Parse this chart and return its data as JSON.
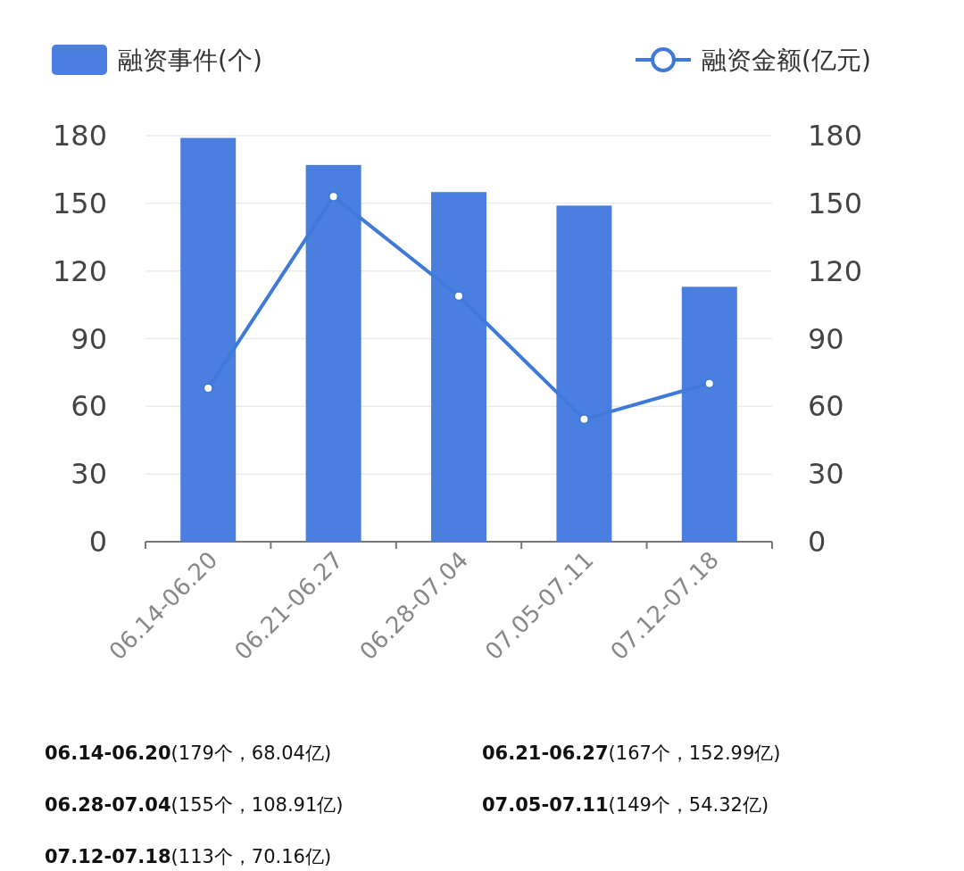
{
  "chart_data": {
    "type": "bar",
    "categories": [
      "06.14-06.20",
      "06.21-06.27",
      "06.28-07.04",
      "07.05-07.11",
      "07.12-07.18"
    ],
    "series": [
      {
        "name": "融资事件(个)",
        "color": "#4a7fe0",
        "values": [
          179,
          167,
          155,
          149,
          113
        ]
      },
      {
        "name": "融资金额(亿元)",
        "type": "line",
        "axis": "y2",
        "color": "#3f7ad8",
        "values": [
          68.04,
          152.99,
          108.91,
          54.32,
          70.16
        ]
      }
    ],
    "ylim": [
      0,
      180
    ],
    "yticks": [
      0,
      30,
      60,
      90,
      120,
      150,
      180
    ],
    "y2lim": [
      0,
      180
    ],
    "y2ticks": [
      0,
      30,
      60,
      90,
      120,
      150,
      180
    ],
    "grid": "y",
    "legend": "top",
    "marker": "circle",
    "annotations": [
      "**06.14-06.20**(179个，68.04亿)",
      "**06.21-06.27**(167个，152.99亿)",
      "**06.28-07.04**(155个，108.91亿)",
      "**07.05-07.11**(149个，54.32亿)",
      "**07.12-07.18**(113个，70.16亿)"
    ]
  }
}
